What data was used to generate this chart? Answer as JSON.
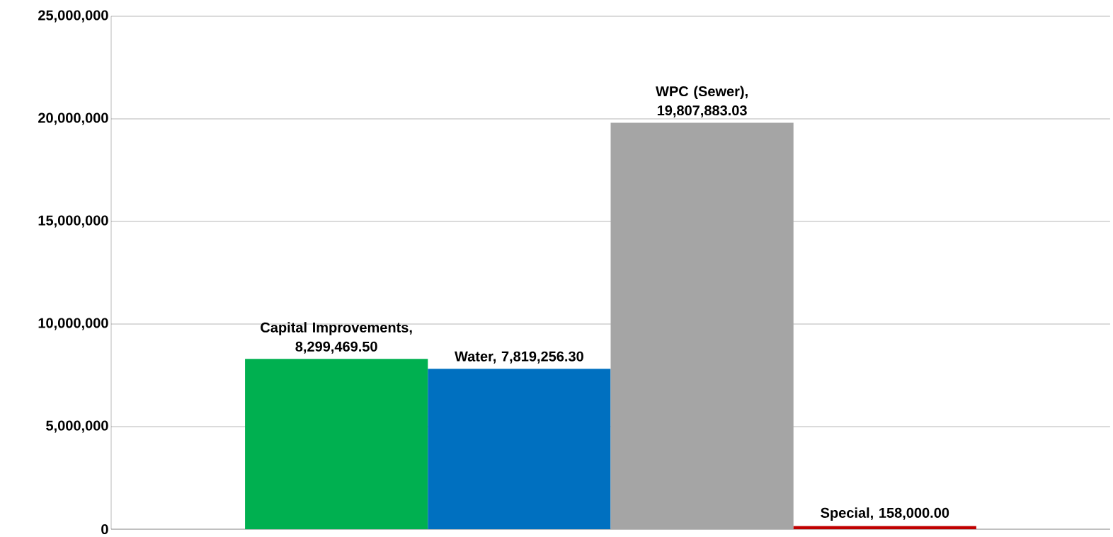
{
  "chart_data": {
    "type": "bar",
    "categories": [
      null
    ],
    "series": [
      {
        "color": "#00b050",
        "values": [
          8299469.5
        ],
        "value_labels": [
          "Capital Improvements, 8,299,469.50"
        ]
      },
      {
        "color": "#0070c0",
        "values": [
          7819256.3
        ],
        "value_labels": [
          "Water, 7,819,256.30"
        ]
      },
      {
        "color": "#a5a5a5",
        "values": [
          19807883.03
        ],
        "value_labels": [
          "WPC (Sewer), 19,807,883.03"
        ]
      },
      {
        "color": "#c00000",
        "values": [
          158000
        ],
        "value_labels": [
          "Special, 158,000.00"
        ]
      }
    ],
    "ylim": [
      0,
      25000000
    ],
    "yticks": [
      0,
      {
        "value": 5000000,
        "label": "5,000,000"
      },
      {
        "value": 10000000,
        "label": "10,000,000"
      },
      {
        "value": 15000000,
        "label": "15,000,000"
      },
      {
        "value": 20000000,
        "label": "20,000,000"
      },
      {
        "value": 25000000,
        "label": "25,000,000"
      }
    ],
    "grid": "y",
    "tick_labels": "y"
  }
}
